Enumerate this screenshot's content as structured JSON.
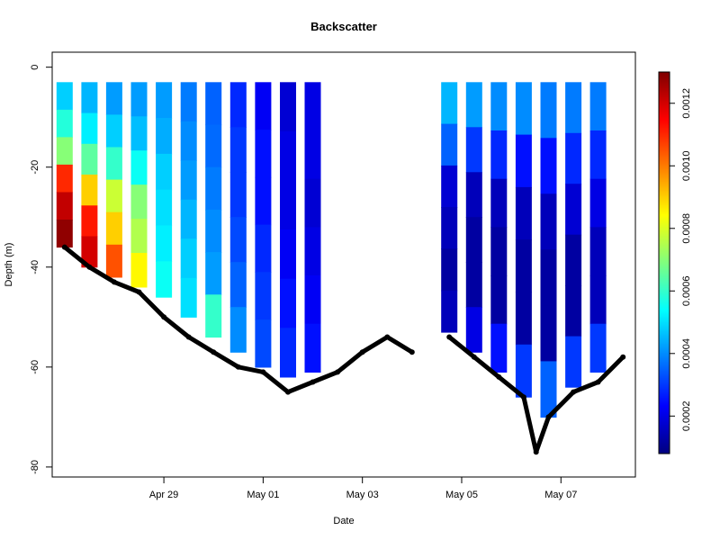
{
  "chart_data": {
    "type": "scatter",
    "title": "Backscatter",
    "xlabel": "Date",
    "ylabel": "Depth (m)",
    "x_axis_kind": "date",
    "xlim": [
      "2023-04-26T18:00",
      "2023-05-08T12:00"
    ],
    "ylim": [
      -82,
      3
    ],
    "x_ticks": [
      {
        "date": "2023-04-29T00:00",
        "label": "Apr 29"
      },
      {
        "date": "2023-05-01T00:00",
        "label": "May 01"
      },
      {
        "date": "2023-05-03T00:00",
        "label": "May 03"
      },
      {
        "date": "2023-05-05T00:00",
        "label": "May 05"
      },
      {
        "date": "2023-05-07T00:00",
        "label": "May 07"
      }
    ],
    "y_ticks": [
      0,
      -20,
      -40,
      -60,
      -80
    ],
    "grid": false,
    "colorbar": {
      "range": [
        8e-05,
        0.0013
      ],
      "ticks": [
        0.0002,
        0.0004,
        0.0006,
        0.0008,
        0.001,
        0.0012
      ],
      "tick_labels": [
        "0.0002",
        "0.0004",
        "0.0006",
        "0.0008",
        "0.0010",
        "0.0012"
      ],
      "colormap": [
        "#00007F",
        "#0000FF",
        "#007FFF",
        "#00FFFF",
        "#7FFF7F",
        "#FFFF00",
        "#FF7F00",
        "#FF0000",
        "#7F0000"
      ]
    },
    "profiles": [
      {
        "date": "2023-04-27T00:00",
        "top": -3,
        "bottom": -36,
        "values": [
          0.00048,
          0.00058,
          0.0007,
          0.0011,
          0.00122,
          0.00128
        ]
      },
      {
        "date": "2023-04-27T12:00",
        "top": -3,
        "bottom": -40,
        "values": [
          0.00045,
          0.00052,
          0.00065,
          0.0009,
          0.00112,
          0.0012
        ]
      },
      {
        "date": "2023-04-28T00:00",
        "top": -3,
        "bottom": -42,
        "values": [
          0.00042,
          0.00048,
          0.0006,
          0.00078,
          0.0009,
          0.00105
        ]
      },
      {
        "date": "2023-04-28T12:00",
        "top": -3,
        "bottom": -44,
        "values": [
          0.00042,
          0.00046,
          0.00055,
          0.0007,
          0.00075,
          0.00085
        ]
      },
      {
        "date": "2023-04-29T00:00",
        "top": -3,
        "bottom": -46,
        "values": [
          0.00042,
          0.00044,
          0.00048,
          0.0005,
          0.00052,
          0.00055
        ]
      },
      {
        "date": "2023-04-29T12:00",
        "top": -3,
        "bottom": -50,
        "values": [
          0.00038,
          0.0004,
          0.00042,
          0.00045,
          0.00048,
          0.0005
        ]
      },
      {
        "date": "2023-04-30T00:00",
        "top": -3,
        "bottom": -54,
        "values": [
          0.00035,
          0.00036,
          0.00038,
          0.0004,
          0.00042,
          0.0006
        ]
      },
      {
        "date": "2023-04-30T12:00",
        "top": -3,
        "bottom": -57,
        "values": [
          0.00028,
          0.0003,
          0.0003,
          0.00032,
          0.00035,
          0.0004
        ]
      },
      {
        "date": "2023-05-01T00:00",
        "top": -3,
        "bottom": -60,
        "values": [
          0.00022,
          0.00025,
          0.00025,
          0.00028,
          0.0003,
          0.00032
        ]
      },
      {
        "date": "2023-05-01T12:00",
        "top": -3,
        "bottom": -62,
        "values": [
          0.00018,
          0.0002,
          0.0002,
          0.00022,
          0.00025,
          0.00028
        ]
      },
      {
        "date": "2023-05-02T00:00",
        "top": -3,
        "bottom": -61,
        "values": [
          0.0002,
          0.0002,
          0.00018,
          0.0002,
          0.00022,
          0.00025
        ]
      },
      {
        "date": "2023-05-04T18:00",
        "top": -3,
        "bottom": -53,
        "values": [
          0.00045,
          0.00035,
          0.00018,
          0.00015,
          0.00012,
          0.00015
        ]
      },
      {
        "date": "2023-05-05T06:00",
        "top": -3,
        "bottom": -57,
        "values": [
          0.00042,
          0.0003,
          0.00015,
          0.00012,
          0.00012,
          0.0002
        ]
      },
      {
        "date": "2023-05-05T18:00",
        "top": -3,
        "bottom": -61,
        "values": [
          0.0004,
          0.00028,
          0.00015,
          0.00012,
          0.00012,
          0.00025
        ]
      },
      {
        "date": "2023-05-06T06:00",
        "top": -3,
        "bottom": -66,
        "values": [
          0.0004,
          0.00025,
          0.00015,
          0.00012,
          0.00012,
          0.0003
        ]
      },
      {
        "date": "2023-05-06T18:00",
        "top": -3,
        "bottom": -70,
        "values": [
          0.00038,
          0.00025,
          0.00015,
          0.00012,
          0.00012,
          0.00035
        ]
      },
      {
        "date": "2023-05-07T06:00",
        "top": -3,
        "bottom": -64,
        "values": [
          0.00038,
          0.00028,
          0.00018,
          0.00012,
          0.00012,
          0.0003
        ]
      },
      {
        "date": "2023-05-07T18:00",
        "top": -3,
        "bottom": -61,
        "values": [
          0.00038,
          0.00028,
          0.0002,
          0.00015,
          0.00015,
          0.0003
        ]
      }
    ],
    "bottom_depth": {
      "dates": [
        "2023-04-27T00:00",
        "2023-04-27T12:00",
        "2023-04-28T00:00",
        "2023-04-28T12:00",
        "2023-04-29T00:00",
        "2023-04-29T12:00",
        "2023-04-30T00:00",
        "2023-04-30T12:00",
        "2023-05-01T00:00",
        "2023-05-01T12:00",
        "2023-05-02T00:00",
        "2023-05-02T12:00",
        "2023-05-03T00:00",
        "2023-05-03T12:00",
        "2023-05-04T00:00",
        "2023-05-04T18:00",
        "2023-05-05T06:00",
        "2023-05-05T18:00",
        "2023-05-06T06:00",
        "2023-05-06T12:00",
        "2023-05-06T18:00",
        "2023-05-07T06:00",
        "2023-05-07T18:00",
        "2023-05-08T06:00"
      ],
      "depths": [
        -36,
        -40,
        -43,
        -45,
        -50,
        -54,
        -57,
        -60,
        -61,
        -65,
        -63,
        -61,
        -57,
        -54,
        -57,
        -54,
        -58,
        -62,
        -66,
        -77,
        -70,
        -65,
        -63,
        -58
      ]
    }
  }
}
